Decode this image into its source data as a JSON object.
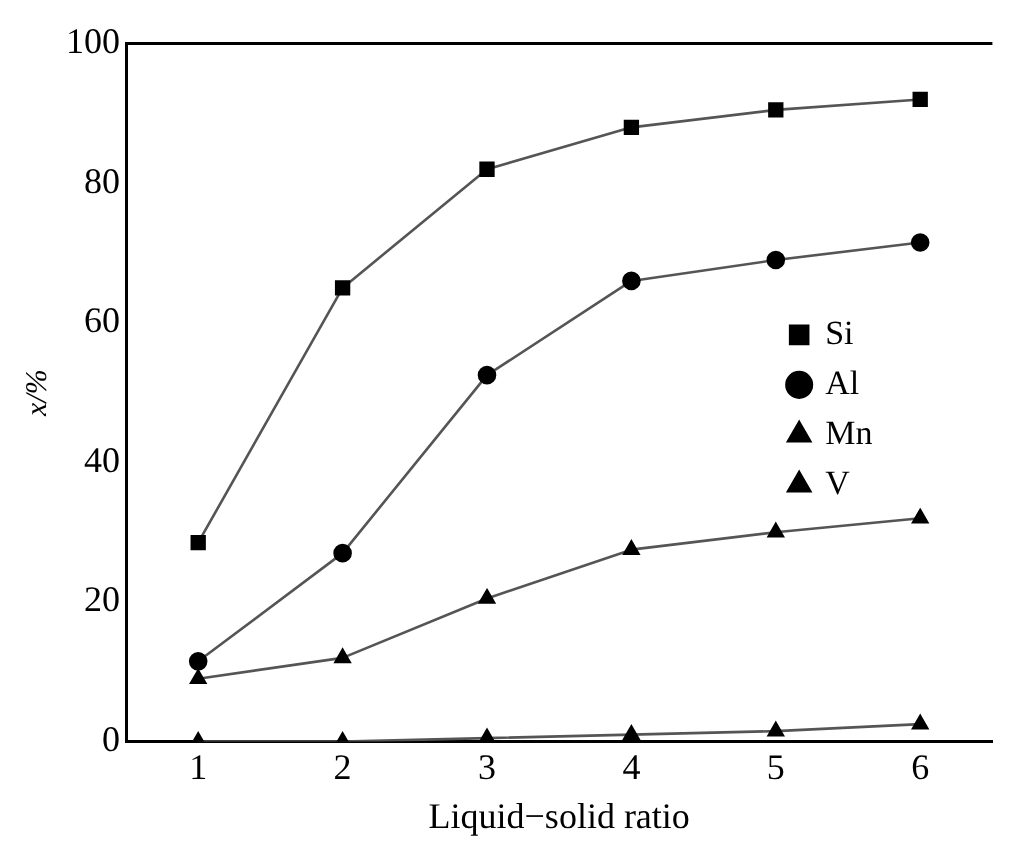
{
  "chart_data": {
    "type": "line",
    "xlabel": "Liquid−solid ratio",
    "ylabel": "x/%",
    "x": [
      1,
      2,
      3,
      4,
      5,
      6
    ],
    "xlim": [
      0.5,
      6.5
    ],
    "xticks": [
      1,
      2,
      3,
      4,
      5,
      6
    ],
    "ylim": [
      0,
      100
    ],
    "yticks": [
      0,
      20,
      40,
      60,
      80,
      100
    ],
    "grid": false,
    "legend": "right",
    "line_style": "solid",
    "series": [
      {
        "name": "Si",
        "color": "#000000",
        "marker": "square",
        "values": [
          28.5,
          65,
          82,
          88,
          90.5,
          92
        ]
      },
      {
        "name": "Al",
        "color": "#000000",
        "marker": "circle",
        "values": [
          11.5,
          27,
          52.5,
          66,
          69,
          71.5
        ]
      },
      {
        "name": "Mn",
        "color": "#000000",
        "marker": "triangle",
        "values": [
          9,
          12,
          20.5,
          27.5,
          30,
          32
        ]
      },
      {
        "name": "V",
        "color": "#000000",
        "marker": "triangle",
        "values": [
          0,
          0,
          0.5,
          1,
          1.5,
          2.5
        ]
      }
    ]
  }
}
